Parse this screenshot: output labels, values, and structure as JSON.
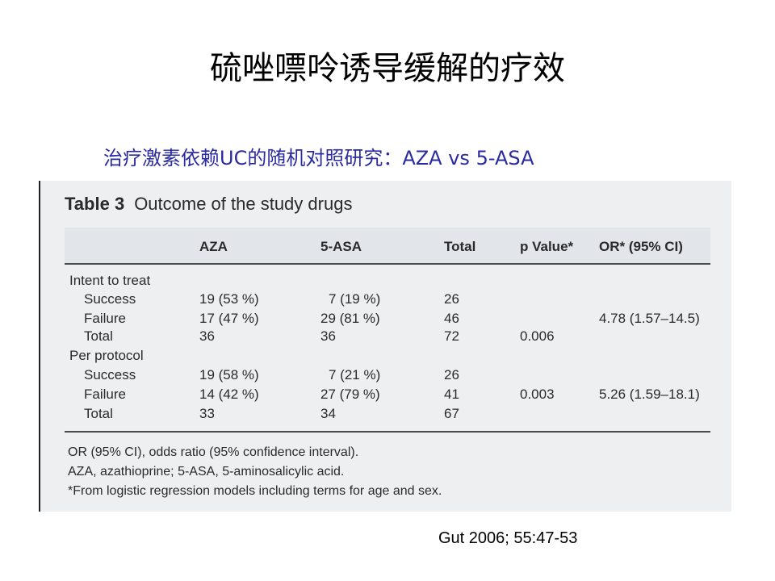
{
  "slide": {
    "title": "硫唑嘌呤诱导缓解的疗效",
    "subtitle": "治疗激素依赖UC的随机对照研究：AZA vs 5-ASA",
    "citation": "Gut 2006; 55:47-53"
  },
  "table": {
    "label": "Table 3",
    "caption": "Outcome of the study drugs",
    "columns": [
      "AZA",
      "5-ASA",
      "Total",
      "p Value*",
      "OR* (95% CI)"
    ],
    "groups": [
      {
        "name": "Intent to treat",
        "rows": [
          {
            "label": "Success",
            "aza": "19 (53 %)",
            "asa": "7 (19 %)",
            "total": "26",
            "p": "",
            "or": ""
          },
          {
            "label": "Failure",
            "aza": "17 (47 %)",
            "asa": "29 (81 %)",
            "total": "46",
            "p": "",
            "or": "4.78 (1.57–14.5)"
          },
          {
            "label": "Total",
            "aza": "36",
            "asa": "36",
            "total": "72",
            "p": "0.006",
            "or": ""
          }
        ]
      },
      {
        "name": "Per protocol",
        "rows": [
          {
            "label": "Success",
            "aza": "19 (58 %)",
            "asa": "7 (21 %)",
            "total": "26",
            "p": "",
            "or": ""
          },
          {
            "label": "Failure",
            "aza": "14 (42 %)",
            "asa": "27 (79 %)",
            "total": "41",
            "p": "0.003",
            "or": "5.26 (1.59–18.1)"
          },
          {
            "label": "Total",
            "aza": "33",
            "asa": "34",
            "total": "67",
            "p": "",
            "or": ""
          }
        ]
      }
    ],
    "footnotes": [
      "OR (95% CI), odds ratio (95% confidence interval).",
      "AZA, azathioprine; 5-ASA, 5-aminosalicylic acid.",
      "*From logistic regression models including terms for age and sex."
    ]
  }
}
